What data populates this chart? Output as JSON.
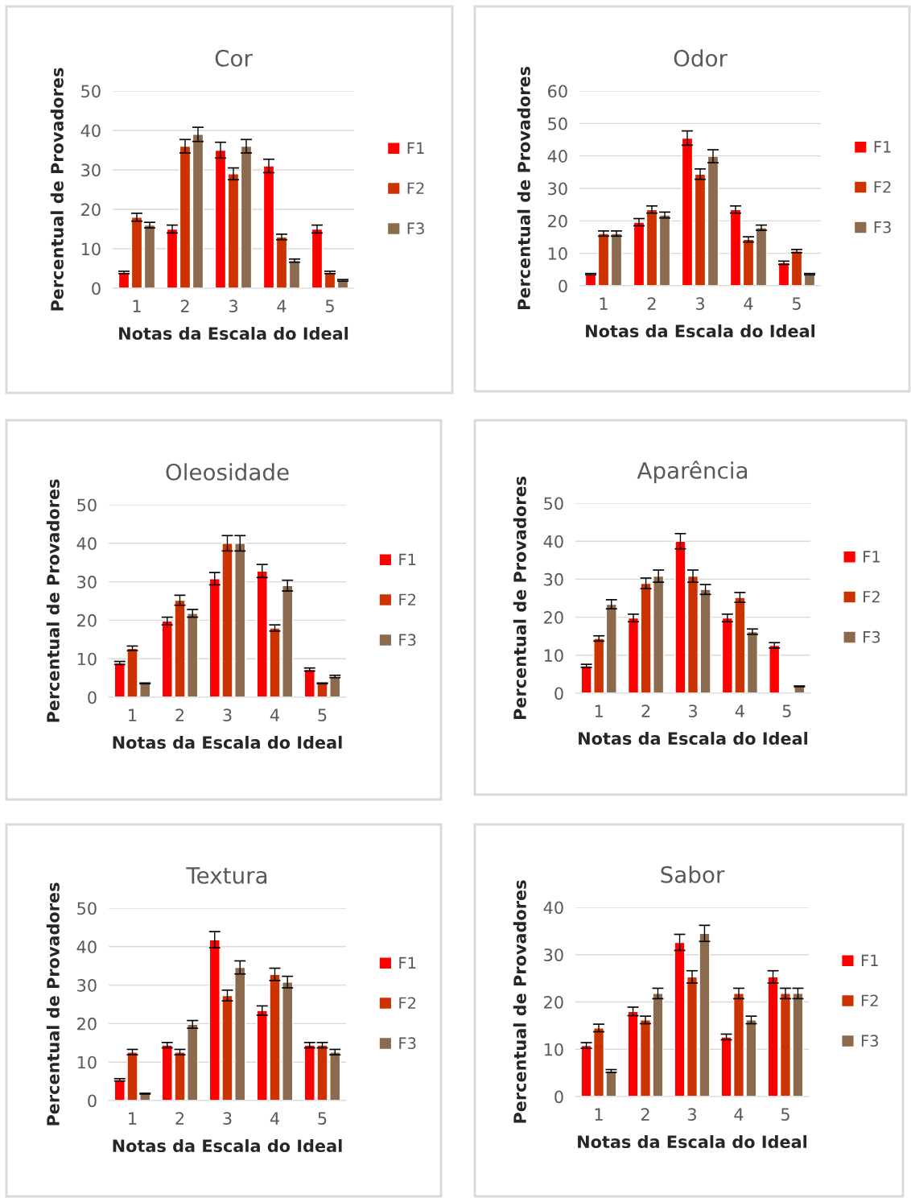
{
  "chart_data": [
    {
      "type": "bar",
      "title": "Cor",
      "xlabel": "Notas da Escala do Ideal",
      "ylabel": "Percentual de Provadores",
      "categories": [
        "1",
        "2",
        "3",
        "4",
        "5"
      ],
      "ylim": [
        0,
        50
      ],
      "yticks": [
        0,
        10,
        20,
        30,
        40,
        50
      ],
      "grid": "y",
      "legend": "right",
      "series": [
        {
          "name": "F1",
          "color": "#ff0000",
          "values": [
            4,
            15,
            35,
            31,
            15
          ],
          "errors": [
            0.3,
            1,
            2,
            1.7,
            1
          ]
        },
        {
          "name": "F2",
          "color": "#cc3300",
          "values": [
            18,
            36,
            29,
            13,
            4
          ],
          "errors": [
            1,
            1.7,
            1.5,
            0.7,
            0.3
          ]
        },
        {
          "name": "F3",
          "color": "#8c6a4e",
          "values": [
            16,
            39,
            36,
            7,
            2
          ],
          "errors": [
            0.7,
            1.8,
            1.7,
            0.4,
            0.2
          ]
        }
      ]
    },
    {
      "type": "bar",
      "title": "Odor",
      "xlabel": "Notas da Escala do Ideal",
      "ylabel": "Percentual de Provadores",
      "categories": [
        "1",
        "2",
        "3",
        "4",
        "5"
      ],
      "ylim": [
        0,
        60
      ],
      "yticks": [
        0,
        10,
        20,
        30,
        40,
        50,
        60
      ],
      "grid": "y",
      "legend": "right",
      "series": [
        {
          "name": "F1",
          "color": "#ff0000",
          "values": [
            3.6,
            19.6,
            45.5,
            23.5,
            7.1
          ],
          "errors": [
            0.2,
            1.1,
            2.2,
            1.1,
            0.5
          ]
        },
        {
          "name": "F2",
          "color": "#cc3300",
          "values": [
            16.1,
            23.5,
            34.4,
            14.3,
            10.7
          ],
          "errors": [
            0.8,
            1.1,
            1.6,
            0.8,
            0.5
          ]
        },
        {
          "name": "F3",
          "color": "#8c6a4e",
          "values": [
            16.1,
            21.8,
            39.9,
            17.9,
            3.6
          ],
          "errors": [
            0.8,
            0.9,
            2,
            0.8,
            0.2
          ]
        }
      ]
    },
    {
      "type": "bar",
      "title": "Oleosidade",
      "xlabel": "Notas da Escala do Ideal",
      "ylabel": "Percentual de Provadores",
      "categories": [
        "1",
        "2",
        "3",
        "4",
        "5"
      ],
      "ylim": [
        0,
        50
      ],
      "yticks": [
        0,
        10,
        20,
        30,
        40,
        50
      ],
      "grid": "y",
      "legend": "right",
      "series": [
        {
          "name": "F1",
          "color": "#ff0000",
          "values": [
            8.9,
            19.8,
            30.8,
            32.8,
            7.2
          ],
          "errors": [
            0.4,
            1,
            1.6,
            1.7,
            0.4
          ]
        },
        {
          "name": "F2",
          "color": "#cc3300",
          "values": [
            12.7,
            25.2,
            40,
            18,
            3.6
          ],
          "errors": [
            0.6,
            1.3,
            2,
            0.8,
            0.1
          ]
        },
        {
          "name": "F3",
          "color": "#8c6a4e",
          "values": [
            3.6,
            21.8,
            40,
            29,
            5.4
          ],
          "errors": [
            0.1,
            1,
            2,
            1.4,
            0.3
          ]
        }
      ]
    },
    {
      "type": "bar",
      "title": "Aparência",
      "xlabel": "Notas da Escala do Ideal",
      "ylabel": "Percentual de Provadores",
      "categories": [
        "1",
        "2",
        "3",
        "4",
        "5"
      ],
      "ylim": [
        0,
        50
      ],
      "yticks": [
        0,
        10,
        20,
        30,
        40,
        50
      ],
      "grid": "y",
      "legend": "right",
      "series": [
        {
          "name": "F1",
          "color": "#ff0000",
          "values": [
            7.2,
            19.8,
            40,
            19.8,
            12.6
          ],
          "errors": [
            0.4,
            1,
            2,
            1,
            0.7
          ]
        },
        {
          "name": "F2",
          "color": "#cc3300",
          "values": [
            14.4,
            28.9,
            30.8,
            25.2,
            null
          ],
          "errors": [
            0.7,
            1.4,
            1.6,
            1.3,
            null
          ]
        },
        {
          "name": "F3",
          "color": "#8c6a4e",
          "values": [
            23.4,
            30.8,
            27.3,
            16.2,
            1.8
          ],
          "errors": [
            1.2,
            1.6,
            1.3,
            0.7,
            0.1
          ]
        }
      ]
    },
    {
      "type": "bar",
      "title": "Textura",
      "xlabel": "Notas da Escala do Ideal",
      "ylabel": "Percentual de Provadores",
      "categories": [
        "1",
        "2",
        "3",
        "4",
        "5"
      ],
      "ylim": [
        0,
        50
      ],
      "yticks": [
        0,
        10,
        20,
        30,
        40,
        50
      ],
      "grid": "y",
      "legend": "right",
      "series": [
        {
          "name": "F1",
          "color": "#ff0000",
          "values": [
            5.4,
            14.4,
            41.8,
            23.4,
            14.4
          ],
          "errors": [
            0.3,
            0.7,
            2.1,
            1.2,
            0.7
          ]
        },
        {
          "name": "F2",
          "color": "#cc3300",
          "values": [
            12.6,
            12.6,
            27.3,
            32.8,
            14.4
          ],
          "errors": [
            0.7,
            0.7,
            1.4,
            1.6,
            0.7
          ]
        },
        {
          "name": "F3",
          "color": "#8c6a4e",
          "values": [
            1.8,
            19.8,
            34.6,
            30.8,
            12.6
          ],
          "errors": [
            0.1,
            1,
            1.7,
            1.5,
            0.7
          ]
        }
      ]
    },
    {
      "type": "bar",
      "title": "Sabor",
      "xlabel": "Notas da Escala do Ideal",
      "ylabel": "Percentual de Provadores",
      "categories": [
        "1",
        "2",
        "3",
        "4",
        "5"
      ],
      "ylim": [
        0,
        40
      ],
      "yticks": [
        0,
        10,
        20,
        30,
        40
      ],
      "grid": "y",
      "legend": "right",
      "series": [
        {
          "name": "F1",
          "color": "#ff0000",
          "values": [
            10.8,
            18,
            32.6,
            12.6,
            25.3
          ],
          "errors": [
            0.6,
            0.9,
            1.7,
            0.6,
            1.3
          ]
        },
        {
          "name": "F2",
          "color": "#cc3300",
          "values": [
            14.5,
            16.2,
            25.3,
            21.8,
            21.8
          ],
          "errors": [
            0.8,
            0.8,
            1.3,
            1.1,
            1.1
          ]
        },
        {
          "name": "F3",
          "color": "#8c6a4e",
          "values": [
            5.4,
            21.8,
            34.5,
            16.2,
            21.8
          ],
          "errors": [
            0.3,
            1.1,
            1.7,
            0.8,
            1.1
          ]
        }
      ]
    }
  ]
}
